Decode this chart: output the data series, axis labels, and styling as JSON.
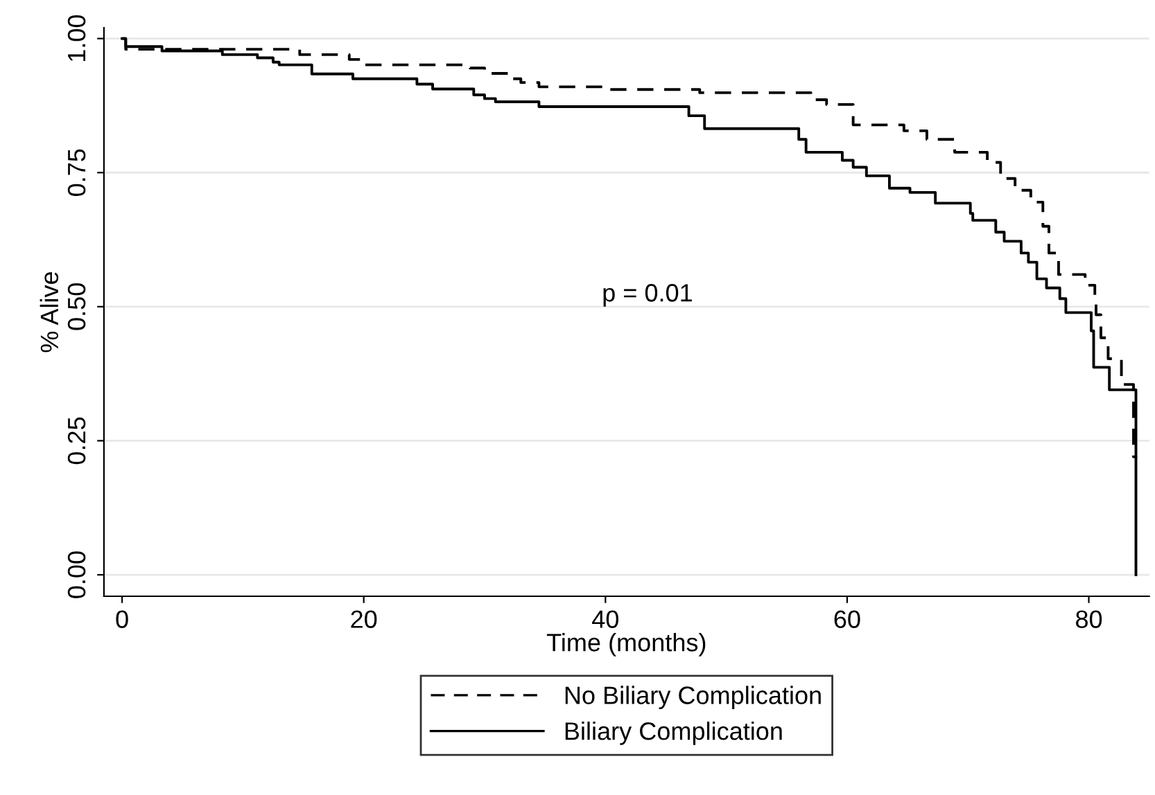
{
  "chart_data": {
    "type": "step",
    "xlabel": "Time (months)",
    "ylabel": "% Alive",
    "xlim": [
      -1.5,
      85
    ],
    "xticks": [
      0,
      20,
      40,
      60,
      80
    ],
    "ylim": [
      -0.04,
      1.02
    ],
    "yticks": [
      {
        "value": 0,
        "label": "0.00"
      },
      {
        "value": 0.25,
        "label": "0.25"
      },
      {
        "value": 0.5,
        "label": "0.50"
      },
      {
        "value": 0.75,
        "label": "0.75"
      },
      {
        "value": 1,
        "label": "1.00"
      }
    ],
    "grid": "y",
    "legend": "bottom",
    "annotations": [
      "p = 0.01"
    ],
    "series": [
      {
        "name": "No Biliary Complication",
        "color": "#000000",
        "line_style": "dashed",
        "x": [
          0,
          0.3,
          14.7,
          18.8,
          19.8,
          28.8,
          30,
          32,
          33,
          34.5,
          40.4,
          47.8,
          57.0,
          58.3,
          60.5,
          64.7,
          66.6,
          68.9,
          71.6,
          72.7,
          73.9,
          75.2,
          76.2,
          76.7,
          77.5,
          79.7,
          80.5,
          80.6,
          81.0,
          81.6,
          82.7,
          83.7,
          84
        ],
        "values": [
          1.0,
          0.98,
          0.97,
          0.961,
          0.951,
          0.945,
          0.935,
          0.925,
          0.918,
          0.91,
          0.905,
          0.899,
          0.886,
          0.877,
          0.839,
          0.828,
          0.812,
          0.788,
          0.769,
          0.739,
          0.717,
          0.695,
          0.65,
          0.6,
          0.56,
          0.54,
          0.51,
          0.485,
          0.442,
          0.403,
          0.355,
          0.22,
          0.22
        ]
      },
      {
        "name": "Biliary Complication",
        "color": "#000000",
        "line_style": "solid",
        "x": [
          0,
          0.3,
          3.3,
          8.3,
          11.2,
          12.5,
          13.0,
          15.7,
          19.1,
          24.4,
          25.7,
          29.1,
          30.0,
          30.9,
          34.5,
          46.9,
          48.2,
          56.0,
          56.6,
          59.6,
          60.5,
          61.6,
          63.5,
          65.2,
          67.3,
          70.2,
          70.4,
          72.3,
          73.0,
          74.4,
          75.0,
          75.7,
          76.5,
          77.6,
          78.1,
          80.2,
          80.4,
          81.7,
          83.9
        ],
        "values": [
          1.0,
          0.985,
          0.977,
          0.97,
          0.964,
          0.956,
          0.951,
          0.934,
          0.925,
          0.915,
          0.906,
          0.895,
          0.888,
          0.882,
          0.873,
          0.856,
          0.832,
          0.812,
          0.788,
          0.773,
          0.76,
          0.744,
          0.721,
          0.713,
          0.693,
          0.674,
          0.661,
          0.639,
          0.622,
          0.6,
          0.583,
          0.552,
          0.535,
          0.515,
          0.489,
          0.455,
          0.387,
          0.345,
          0.0
        ]
      }
    ]
  }
}
